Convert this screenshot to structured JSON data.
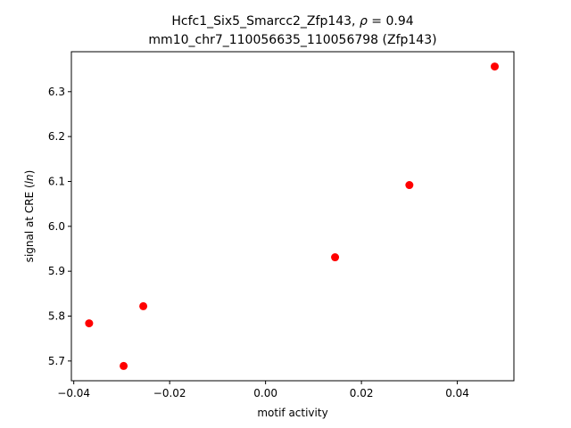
{
  "chart_data": {
    "type": "scatter",
    "title_line1_prefix": "Hcfc1_Six5_Smarcc2_Zfp143, ",
    "title_rho_symbol": "ρ",
    "title_line1_suffix": " = 0.94",
    "title_line2": "mm10_chr7_110056635_110056798 (Zfp143)",
    "xlabel": "motif activity",
    "ylabel_prefix": "signal at CRE (",
    "ylabel_italic": "ln",
    "ylabel_suffix": ")",
    "xlim": [
      -0.0405,
      0.0518
    ],
    "ylim": [
      5.656,
      6.389
    ],
    "xticks": [
      -0.04,
      -0.02,
      0.0,
      0.02,
      0.04
    ],
    "xtick_labels": [
      "−0.04",
      "−0.02",
      "0.00",
      "0.02",
      "0.04"
    ],
    "yticks": [
      5.7,
      5.8,
      5.9,
      6.0,
      6.1,
      6.2,
      6.3
    ],
    "ytick_labels": [
      "5.7",
      "5.8",
      "5.9",
      "6.0",
      "6.1",
      "6.2",
      "6.3"
    ],
    "points": [
      {
        "x": -0.0368,
        "y": 5.784
      },
      {
        "x": -0.0296,
        "y": 5.689
      },
      {
        "x": -0.0255,
        "y": 5.822
      },
      {
        "x": 0.0145,
        "y": 5.931
      },
      {
        "x": 0.03,
        "y": 6.092
      },
      {
        "x": 0.0478,
        "y": 6.356
      }
    ],
    "marker_color": "#ff0000",
    "grid": false
  }
}
